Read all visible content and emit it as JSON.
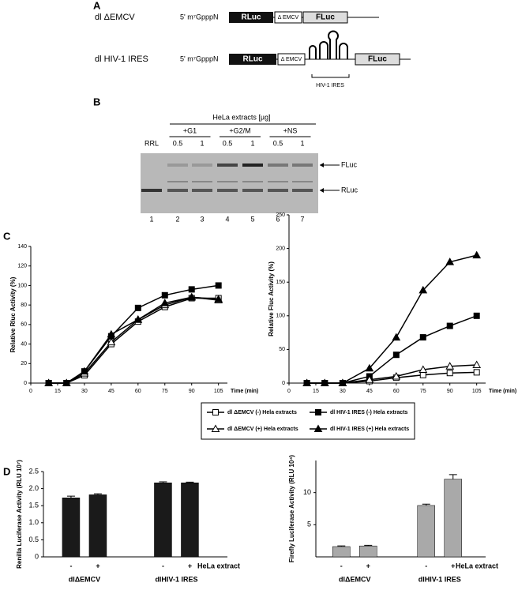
{
  "panel_a": {
    "label": "A",
    "constructs": [
      {
        "name": "dl ΔEMCV",
        "cap": "5' m⁷GpppN",
        "rluc": "RLuc",
        "emcv": "Δ EMCV",
        "fluc": "FLuc"
      },
      {
        "name": "dl HIV-1 IRES",
        "cap": "5' m⁷GpppN",
        "rluc": "RLuc",
        "emcv": "Δ EMCV",
        "fluc": "FLuc",
        "ires": "HIV-1 IRES"
      }
    ]
  },
  "panel_b": {
    "label": "B",
    "header": "HeLa extracts [µg]",
    "groups": [
      "+G1",
      "+G2/M",
      "+NS"
    ],
    "control": "RRL",
    "amounts": [
      "0.5",
      "1",
      "0.5",
      "1",
      "0.5",
      "1"
    ],
    "lanes": [
      "1",
      "2",
      "3",
      "4",
      "5",
      "6",
      "7"
    ],
    "bands": [
      "FLuc",
      "RLuc"
    ]
  },
  "panel_c": {
    "label": "C"
  },
  "panel_d": {
    "label": "D"
  },
  "chart_data": [
    {
      "type": "line",
      "ylabel": "Relative Rluc Activity (%)",
      "xlabel": "Time (min)",
      "x": [
        10,
        20,
        30,
        45,
        60,
        75,
        90,
        105
      ],
      "xlim": [
        0,
        110
      ],
      "xticks": [
        0,
        15,
        30,
        45,
        60,
        75,
        90,
        105
      ],
      "ylim": [
        0,
        140
      ],
      "yticks": [
        0,
        20,
        40,
        60,
        80,
        100,
        120,
        140
      ],
      "series": [
        {
          "name": "dl ΔEMCV (-) Hela extracts",
          "color": "#000000",
          "marker": "open-square",
          "values": [
            0,
            0,
            8,
            40,
            63,
            78,
            87,
            87
          ]
        },
        {
          "name": "dl HIV-1 IRES (-) Hela extracts",
          "color": "#000000",
          "marker": "filled-square",
          "values": [
            0,
            0,
            12,
            48,
            77,
            90,
            96,
            100
          ]
        },
        {
          "name": "dl ΔEMCV (+) Hela extracts",
          "color": "#000000",
          "marker": "open-triangle",
          "values": [
            0,
            0,
            10,
            42,
            65,
            80,
            88,
            85
          ]
        },
        {
          "name": "dl HIV-1 IRES (+) Hela extracts",
          "color": "#000000",
          "marker": "filled-triangle",
          "values": [
            0,
            0,
            12,
            50,
            65,
            82,
            88,
            86
          ]
        }
      ]
    },
    {
      "type": "line",
      "ylabel": "Relative Fluc Activity (%)",
      "xlabel": "Time (min)",
      "x": [
        10,
        20,
        30,
        45,
        60,
        75,
        90,
        105
      ],
      "xlim": [
        0,
        110
      ],
      "xticks": [
        0,
        15,
        30,
        45,
        60,
        75,
        90,
        105
      ],
      "ylim": [
        0,
        250
      ],
      "yticks": [
        0,
        50,
        100,
        150,
        200,
        250
      ],
      "series": [
        {
          "color": "#000000",
          "marker": "open-square",
          "values": [
            0,
            0,
            0,
            3,
            8,
            12,
            15,
            16
          ]
        },
        {
          "color": "#000000",
          "marker": "filled-square",
          "values": [
            0,
            0,
            0,
            10,
            42,
            68,
            85,
            100
          ]
        },
        {
          "color": "#000000",
          "marker": "open-triangle",
          "values": [
            0,
            0,
            0,
            5,
            10,
            20,
            25,
            27
          ]
        },
        {
          "color": "#000000",
          "marker": "filled-triangle",
          "values": [
            0,
            0,
            0,
            22,
            68,
            138,
            180,
            190
          ]
        }
      ]
    },
    {
      "type": "bar",
      "ylabel": "Renilla Luciferase Activity (RLU 10⁷)",
      "categories": [
        "-",
        "+",
        "-",
        "+"
      ],
      "groups": [
        "dlΔEMCV",
        "dlHIV-1 IRES"
      ],
      "treatment_label": "HeLa extract",
      "values": [
        1.73,
        1.82,
        2.17,
        2.17
      ],
      "errors": [
        0.05,
        0.03,
        0.03,
        0.02
      ],
      "color": "#1a1a1a",
      "ylim": [
        0,
        2.5
      ],
      "yticks": [
        0,
        0.5,
        {
          "value": 1,
          "label": "1.0"
        },
        1.5,
        {
          "value": 2,
          "label": "2.0"
        },
        2.5
      ]
    },
    {
      "type": "bar",
      "ylabel": "Firefly Luciferase Activity (RLU 10⁴)",
      "categories": [
        "-",
        "+",
        "-",
        "+"
      ],
      "groups": [
        "dlΔEMCV",
        "dlHIV-1 IRES"
      ],
      "treatment_label": "HeLa extract",
      "values": [
        1.6,
        1.7,
        8.0,
        12.1
      ],
      "errors": [
        0.1,
        0.1,
        0.2,
        0.7
      ],
      "color": "#a9a9a9",
      "ylim": [
        0,
        15
      ],
      "yticks": [
        5,
        10
      ]
    }
  ]
}
